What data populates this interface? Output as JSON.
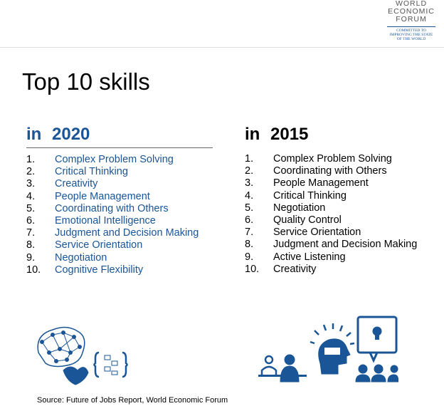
{
  "logo": {
    "name_lines": [
      "WORLD",
      "ECONOMIC",
      "FORUM"
    ],
    "tagline_lines": [
      "COMMITTED TO",
      "IMPROVING THE STATE",
      "OF THE WORLD"
    ]
  },
  "title": "Top 10 skills",
  "col2020": {
    "heading": "in 2020",
    "items": [
      {
        "n": "1.",
        "t": "Complex Problem Solving"
      },
      {
        "n": "2.",
        "t": "Critical Thinking"
      },
      {
        "n": "3.",
        "t": "Creativity"
      },
      {
        "n": "4.",
        "t": "People Management"
      },
      {
        "n": "5.",
        "t": "Coordinating with Others"
      },
      {
        "n": "6.",
        "t": "Emotional Intelligence"
      },
      {
        "n": "7.",
        "t": "Judgment and Decision Making"
      },
      {
        "n": "8.",
        "t": "Service Orientation"
      },
      {
        "n": "9.",
        "t": "Negotiation"
      },
      {
        "n": "10.",
        "t": "Cognitive Flexibility"
      }
    ]
  },
  "col2015": {
    "heading": "in 2015",
    "items": [
      {
        "n": "1.",
        "t": "Complex Problem Solving"
      },
      {
        "n": "2.",
        "t": "Coordinating with Others"
      },
      {
        "n": "3.",
        "t": "People Management"
      },
      {
        "n": "4.",
        "t": "Critical Thinking"
      },
      {
        "n": "5.",
        "t": "Negotiation"
      },
      {
        "n": "6.",
        "t": "Quality Control"
      },
      {
        "n": "7.",
        "t": "Service Orientation"
      },
      {
        "n": "8.",
        "t": "Judgment and Decision Making"
      },
      {
        "n": "9.",
        "t": "Active Listening"
      },
      {
        "n": "10.",
        "t": "Creativity"
      }
    ]
  },
  "source": "Source: Future of Jobs Report, World Economic Forum",
  "colors": {
    "accent": "#1a5597"
  }
}
